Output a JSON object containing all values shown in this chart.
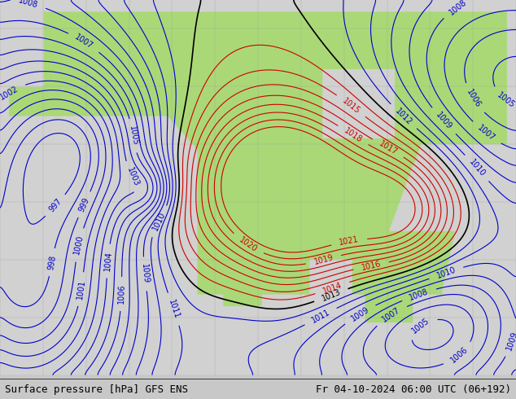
{
  "title_left": "Surface pressure [hPa] GFS ENS",
  "title_right": "Fr 04-10-2024 06:00 UTC (06+192)",
  "bg_color": "#c8c8c8",
  "land_color_r": 0.67,
  "land_color_g": 0.85,
  "land_color_b": 0.47,
  "ocean_color_r": 0.82,
  "ocean_color_g": 0.82,
  "ocean_color_b": 0.82,
  "figsize": [
    6.34,
    4.9
  ],
  "dpi": 100,
  "footer_fontsize": 9,
  "contour_red_color": "#cc0000",
  "contour_blue_color": "#0000cc",
  "contour_black_color": "#000000",
  "contour_linewidth": 0.8,
  "label_fontsize": 7
}
